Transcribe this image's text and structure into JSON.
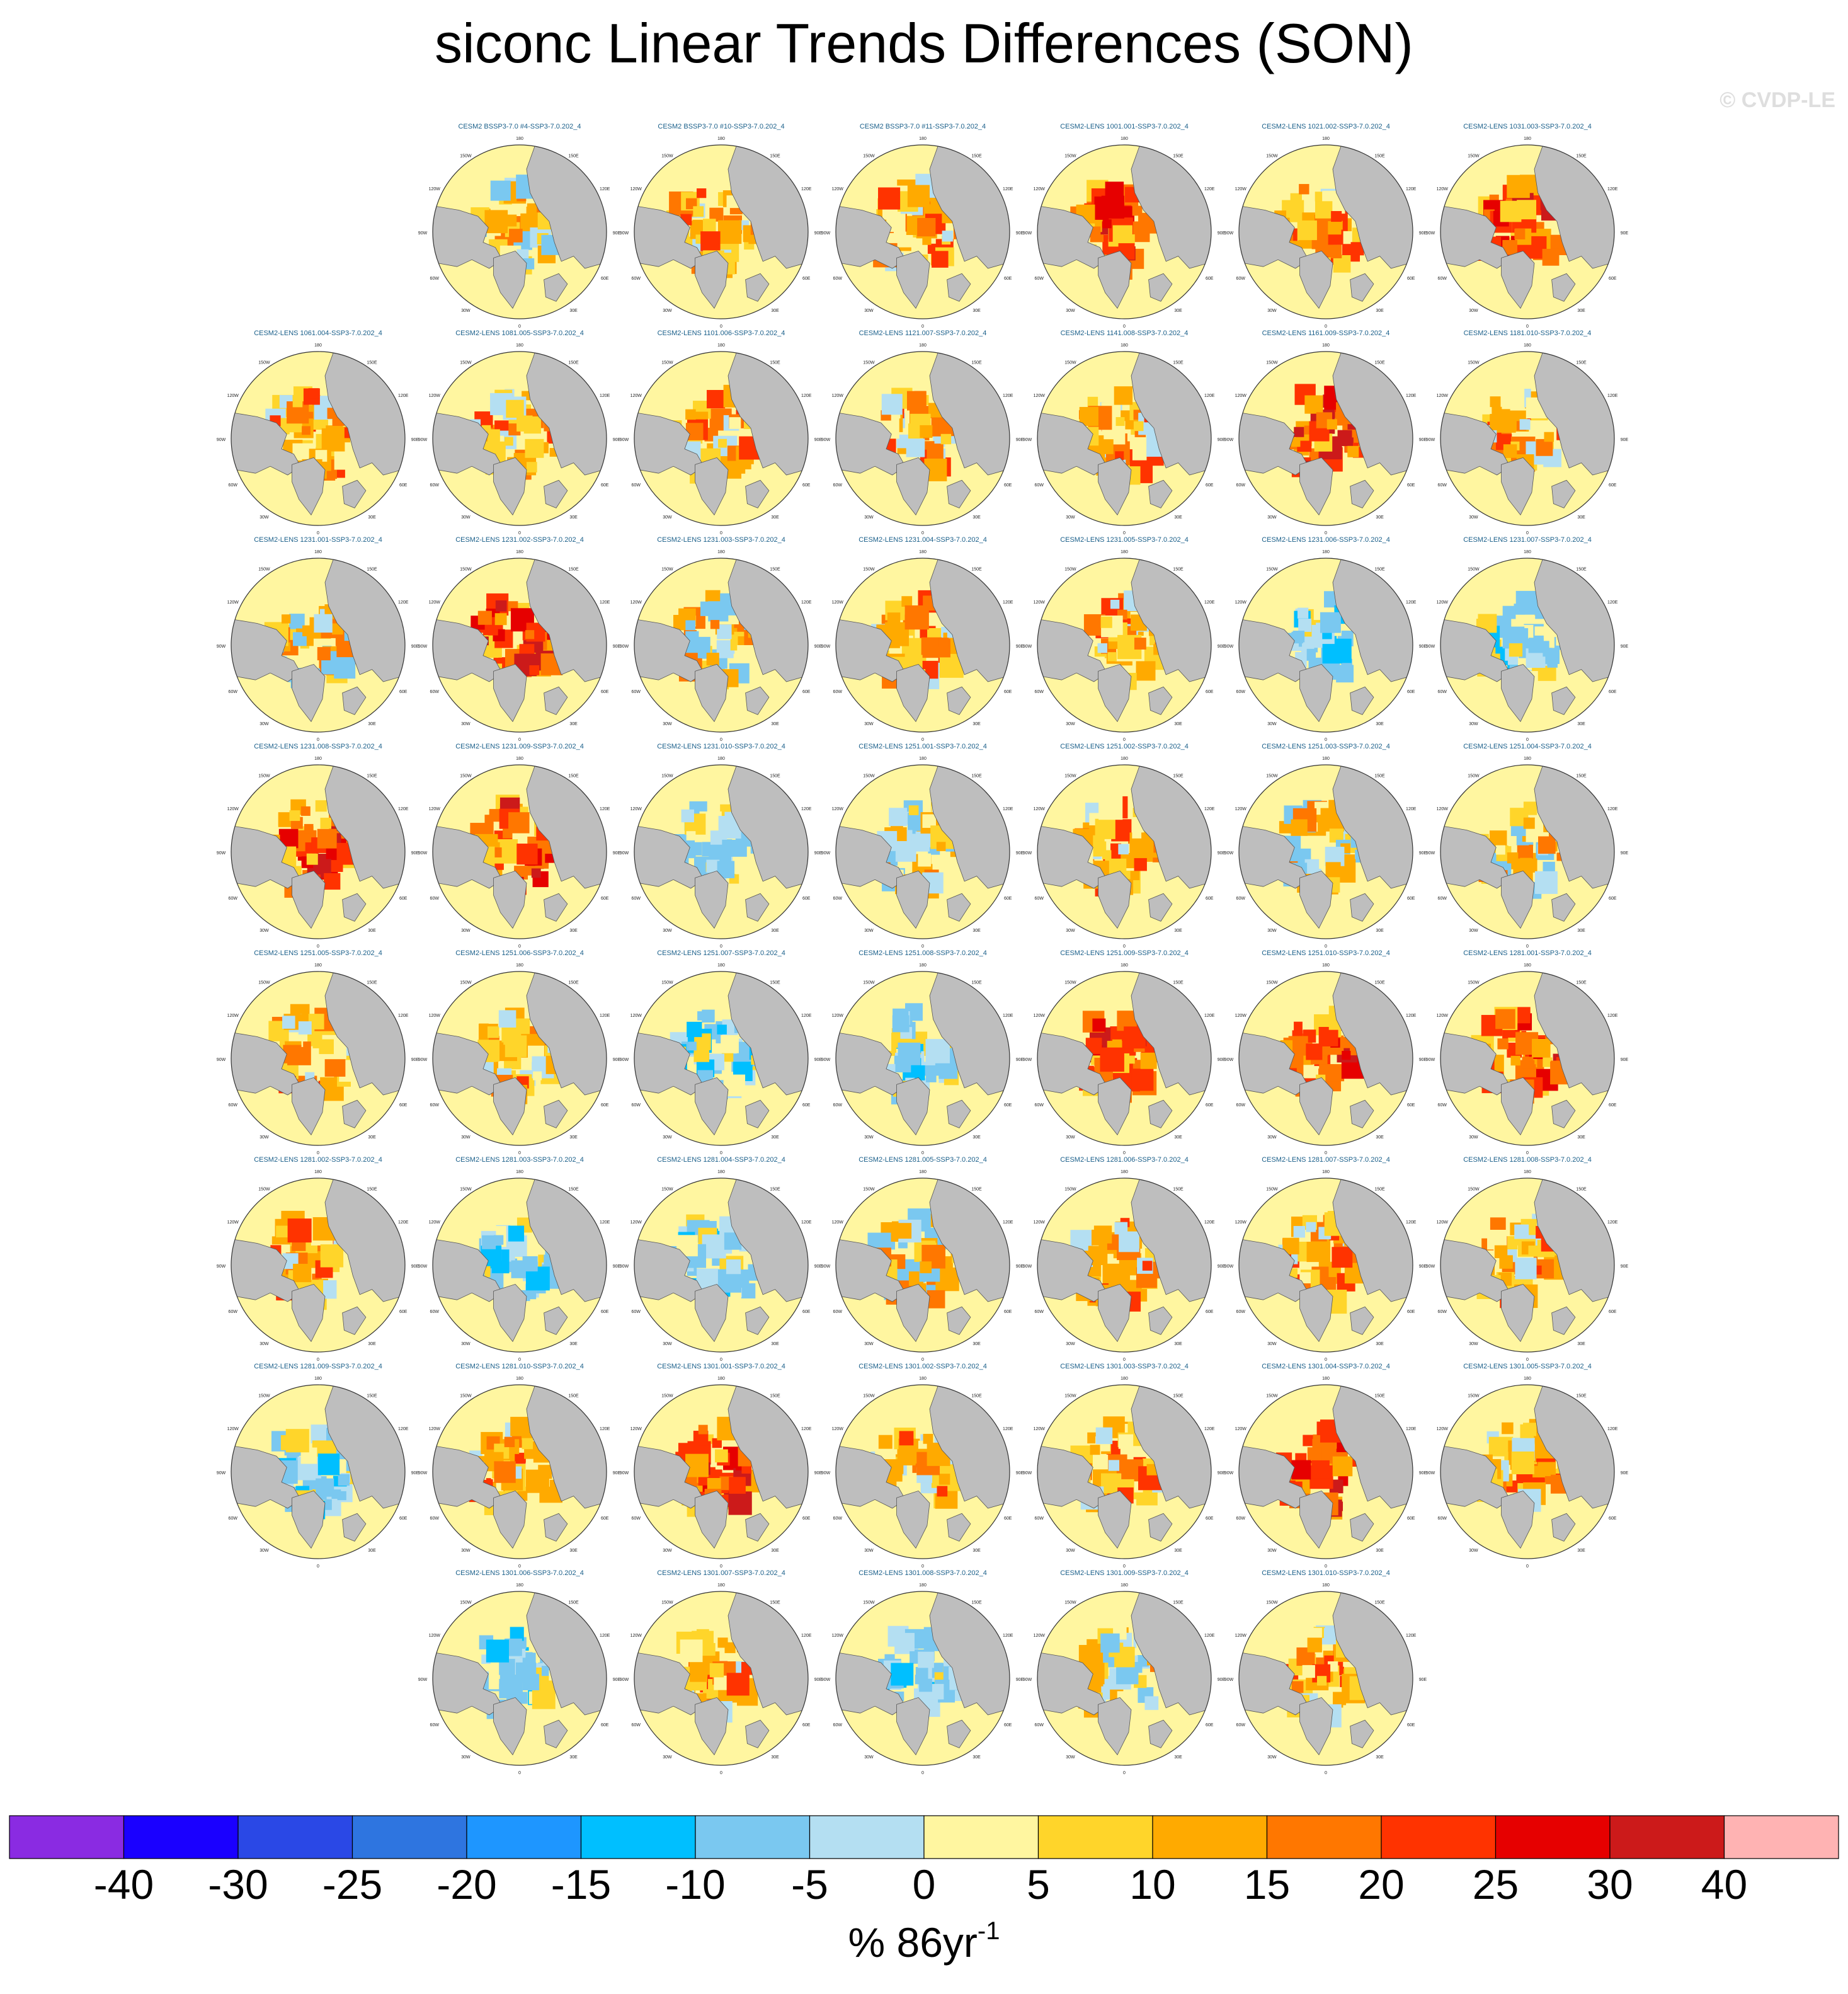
{
  "title": "siconc Linear Trends Differences (SON)",
  "watermark": "© CVDP-LE",
  "colors": {
    "land": "#bebebe",
    "ocean": "#fff6a0",
    "text_title": "#000000",
    "panel_title": "#1a5f8a"
  },
  "map_labels": [
    "180",
    "150W",
    "150E",
    "120W",
    "120E",
    "90W",
    "90E",
    "60W",
    "60E",
    "30W",
    "30E",
    "0"
  ],
  "chart_data": {
    "type": "heatmap",
    "projection": "north polar stereographic",
    "variable": "siconc",
    "season": "SON",
    "panels": [
      {
        "title": "CESM2 BSSP3-7.0 #4-SSP3-7.0.202_4",
        "row": 0,
        "col": 1,
        "pattern": "mixed"
      },
      {
        "title": "CESM2 BSSP3-7.0 #10-SSP3-7.0.202_4",
        "row": 0,
        "col": 2,
        "pattern": "warm"
      },
      {
        "title": "CESM2 BSSP3-7.0 #11-SSP3-7.0.202_4",
        "row": 0,
        "col": 3,
        "pattern": "warm"
      },
      {
        "title": "CESM2-LENS 1001.001-SSP3-7.0.202_4",
        "row": 0,
        "col": 4,
        "pattern": "hot"
      },
      {
        "title": "CESM2-LENS 1021.002-SSP3-7.0.202_4",
        "row": 0,
        "col": 5,
        "pattern": "warm"
      },
      {
        "title": "CESM2-LENS 1031.003-SSP3-7.0.202_4",
        "row": 0,
        "col": 6,
        "pattern": "hot"
      },
      {
        "title": "CESM2-LENS 1061.004-SSP3-7.0.202_4",
        "row": 1,
        "col": 0,
        "pattern": "warm"
      },
      {
        "title": "CESM2-LENS 1081.005-SSP3-7.0.202_4",
        "row": 1,
        "col": 1,
        "pattern": "warm"
      },
      {
        "title": "CESM2-LENS 1101.006-SSP3-7.0.202_4",
        "row": 1,
        "col": 2,
        "pattern": "warm"
      },
      {
        "title": "CESM2-LENS 1121.007-SSP3-7.0.202_4",
        "row": 1,
        "col": 3,
        "pattern": "warm"
      },
      {
        "title": "CESM2-LENS 1141.008-SSP3-7.0.202_4",
        "row": 1,
        "col": 4,
        "pattern": "warm"
      },
      {
        "title": "CESM2-LENS 1161.009-SSP3-7.0.202_4",
        "row": 1,
        "col": 5,
        "pattern": "hot"
      },
      {
        "title": "CESM2-LENS 1181.010-SSP3-7.0.202_4",
        "row": 1,
        "col": 6,
        "pattern": "warm"
      },
      {
        "title": "CESM2-LENS 1231.001-SSP3-7.0.202_4",
        "row": 2,
        "col": 0,
        "pattern": "mixed"
      },
      {
        "title": "CESM2-LENS 1231.002-SSP3-7.0.202_4",
        "row": 2,
        "col": 1,
        "pattern": "hot"
      },
      {
        "title": "CESM2-LENS 1231.003-SSP3-7.0.202_4",
        "row": 2,
        "col": 2,
        "pattern": "mixed"
      },
      {
        "title": "CESM2-LENS 1231.004-SSP3-7.0.202_4",
        "row": 2,
        "col": 3,
        "pattern": "warm"
      },
      {
        "title": "CESM2-LENS 1231.005-SSP3-7.0.202_4",
        "row": 2,
        "col": 4,
        "pattern": "warm"
      },
      {
        "title": "CESM2-LENS 1231.006-SSP3-7.0.202_4",
        "row": 2,
        "col": 5,
        "pattern": "cool"
      },
      {
        "title": "CESM2-LENS 1231.007-SSP3-7.0.202_4",
        "row": 2,
        "col": 6,
        "pattern": "cool"
      },
      {
        "title": "CESM2-LENS 1231.008-SSP3-7.0.202_4",
        "row": 3,
        "col": 0,
        "pattern": "hot"
      },
      {
        "title": "CESM2-LENS 1231.009-SSP3-7.0.202_4",
        "row": 3,
        "col": 1,
        "pattern": "hot"
      },
      {
        "title": "CESM2-LENS 1231.010-SSP3-7.0.202_4",
        "row": 3,
        "col": 2,
        "pattern": "cool"
      },
      {
        "title": "CESM2-LENS 1251.001-SSP3-7.0.202_4",
        "row": 3,
        "col": 3,
        "pattern": "mixed"
      },
      {
        "title": "CESM2-LENS 1251.002-SSP3-7.0.202_4",
        "row": 3,
        "col": 4,
        "pattern": "warm"
      },
      {
        "title": "CESM2-LENS 1251.003-SSP3-7.0.202_4",
        "row": 3,
        "col": 5,
        "pattern": "mixed"
      },
      {
        "title": "CESM2-LENS 1251.004-SSP3-7.0.202_4",
        "row": 3,
        "col": 6,
        "pattern": "mixed"
      },
      {
        "title": "CESM2-LENS 1251.005-SSP3-7.0.202_4",
        "row": 4,
        "col": 0,
        "pattern": "warm"
      },
      {
        "title": "CESM2-LENS 1251.006-SSP3-7.0.202_4",
        "row": 4,
        "col": 1,
        "pattern": "warm"
      },
      {
        "title": "CESM2-LENS 1251.007-SSP3-7.0.202_4",
        "row": 4,
        "col": 2,
        "pattern": "cool"
      },
      {
        "title": "CESM2-LENS 1251.008-SSP3-7.0.202_4",
        "row": 4,
        "col": 3,
        "pattern": "cool"
      },
      {
        "title": "CESM2-LENS 1251.009-SSP3-7.0.202_4",
        "row": 4,
        "col": 4,
        "pattern": "hot"
      },
      {
        "title": "CESM2-LENS 1251.010-SSP3-7.0.202_4",
        "row": 4,
        "col": 5,
        "pattern": "hot"
      },
      {
        "title": "CESM2-LENS 1281.001-SSP3-7.0.202_4",
        "row": 4,
        "col": 6,
        "pattern": "hot"
      },
      {
        "title": "CESM2-LENS 1281.002-SSP3-7.0.202_4",
        "row": 5,
        "col": 0,
        "pattern": "warm"
      },
      {
        "title": "CESM2-LENS 1281.003-SSP3-7.0.202_4",
        "row": 5,
        "col": 1,
        "pattern": "cool"
      },
      {
        "title": "CESM2-LENS 1281.004-SSP3-7.0.202_4",
        "row": 5,
        "col": 2,
        "pattern": "cool"
      },
      {
        "title": "CESM2-LENS 1281.005-SSP3-7.0.202_4",
        "row": 5,
        "col": 3,
        "pattern": "mixed"
      },
      {
        "title": "CESM2-LENS 1281.006-SSP3-7.0.202_4",
        "row": 5,
        "col": 4,
        "pattern": "warm"
      },
      {
        "title": "CESM2-LENS 1281.007-SSP3-7.0.202_4",
        "row": 5,
        "col": 5,
        "pattern": "warm"
      },
      {
        "title": "CESM2-LENS 1281.008-SSP3-7.0.202_4",
        "row": 5,
        "col": 6,
        "pattern": "warm"
      },
      {
        "title": "CESM2-LENS 1281.009-SSP3-7.0.202_4",
        "row": 6,
        "col": 0,
        "pattern": "cool"
      },
      {
        "title": "CESM2-LENS 1281.010-SSP3-7.0.202_4",
        "row": 6,
        "col": 1,
        "pattern": "warm"
      },
      {
        "title": "CESM2-LENS 1301.001-SSP3-7.0.202_4",
        "row": 6,
        "col": 2,
        "pattern": "hot"
      },
      {
        "title": "CESM2-LENS 1301.002-SSP3-7.0.202_4",
        "row": 6,
        "col": 3,
        "pattern": "warm"
      },
      {
        "title": "CESM2-LENS 1301.003-SSP3-7.0.202_4",
        "row": 6,
        "col": 4,
        "pattern": "warm"
      },
      {
        "title": "CESM2-LENS 1301.004-SSP3-7.0.202_4",
        "row": 6,
        "col": 5,
        "pattern": "hot"
      },
      {
        "title": "CESM2-LENS 1301.005-SSP3-7.0.202_4",
        "row": 6,
        "col": 6,
        "pattern": "warm"
      },
      {
        "title": "CESM2-LENS 1301.006-SSP3-7.0.202_4",
        "row": 7,
        "col": 1,
        "pattern": "cool"
      },
      {
        "title": "CESM2-LENS 1301.007-SSP3-7.0.202_4",
        "row": 7,
        "col": 2,
        "pattern": "warm"
      },
      {
        "title": "CESM2-LENS 1301.008-SSP3-7.0.202_4",
        "row": 7,
        "col": 3,
        "pattern": "cool"
      },
      {
        "title": "CESM2-LENS 1301.009-SSP3-7.0.202_4",
        "row": 7,
        "col": 4,
        "pattern": "mixed"
      },
      {
        "title": "CESM2-LENS 1301.010-SSP3-7.0.202_4",
        "row": 7,
        "col": 5,
        "pattern": "warm"
      }
    ],
    "colorbar": {
      "label": "% 86yr",
      "label_superscript": "-1",
      "levels": [
        "-40",
        "-30",
        "-25",
        "-20",
        "-15",
        "-10",
        "-5",
        "0",
        "5",
        "10",
        "15",
        "20",
        "25",
        "30",
        "40"
      ],
      "colors": [
        "#8a2be2",
        "#1a00ff",
        "#2a48e6",
        "#2e75e0",
        "#1e96ff",
        "#00bfff",
        "#7ac8f0",
        "#b4dff2",
        "#fff6a0",
        "#ffd52a",
        "#ffaa00",
        "#ff7700",
        "#ff3300",
        "#e60000",
        "#cc1a1a",
        "#ffb3b3"
      ]
    }
  }
}
